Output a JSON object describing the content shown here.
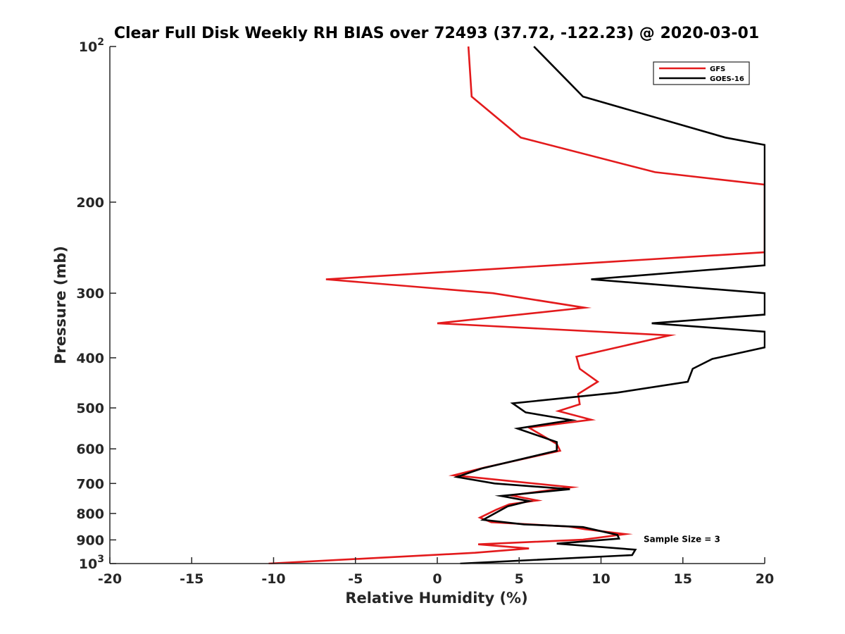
{
  "chart_data": {
    "type": "line",
    "title": "Clear Full Disk Weekly RH BIAS over 72493 (37.72, -122.23) @ 2020-03-01",
    "xlabel": "Relative Humidity (%)",
    "ylabel": "Pressure (mb)",
    "xlim": [
      -20,
      20
    ],
    "ylim": [
      100,
      1000
    ],
    "y_scale": "log",
    "y_reversed": true,
    "x_ticks": [
      -20,
      -15,
      -10,
      -5,
      0,
      5,
      10,
      15,
      20
    ],
    "y_ticks": [
      {
        "value": 100,
        "label": "10",
        "sup": "2"
      },
      {
        "value": 200,
        "label": "200"
      },
      {
        "value": 300,
        "label": "300"
      },
      {
        "value": 400,
        "label": "400"
      },
      {
        "value": 500,
        "label": "500"
      },
      {
        "value": 600,
        "label": "600"
      },
      {
        "value": 700,
        "label": "700"
      },
      {
        "value": 800,
        "label": "800"
      },
      {
        "value": 900,
        "label": "900"
      },
      {
        "value": 1000,
        "label": "10",
        "sup": "3"
      }
    ],
    "grid": false,
    "legend_position": "top-right",
    "series": [
      {
        "name": "GFS",
        "color": "#e31a1c",
        "points": [
          [
            1.9,
            100
          ],
          [
            2.1,
            125
          ],
          [
            5.1,
            150
          ],
          [
            13.3,
            175
          ],
          [
            20.0,
            185
          ],
          [
            20.0,
            250
          ],
          [
            -6.8,
            282
          ],
          [
            3.4,
            300
          ],
          [
            9.0,
            320
          ],
          [
            0.0,
            343
          ],
          [
            14.2,
            362
          ],
          [
            8.5,
            398
          ],
          [
            8.7,
            420
          ],
          [
            9.8,
            445
          ],
          [
            8.6,
            470
          ],
          [
            8.7,
            492
          ],
          [
            7.4,
            507
          ],
          [
            9.4,
            527
          ],
          [
            5.6,
            546
          ],
          [
            7.3,
            587
          ],
          [
            7.5,
            605
          ],
          [
            2.9,
            652
          ],
          [
            1.0,
            675
          ],
          [
            8.2,
            712
          ],
          [
            4.5,
            738
          ],
          [
            6.1,
            755
          ],
          [
            4.4,
            768
          ],
          [
            3.6,
            787
          ],
          [
            2.6,
            815
          ],
          [
            3.3,
            832
          ],
          [
            8.0,
            848
          ],
          [
            9.0,
            858
          ],
          [
            11.5,
            877
          ],
          [
            8.9,
            899
          ],
          [
            2.5,
            918
          ],
          [
            5.6,
            935
          ],
          [
            2.3,
            953
          ],
          [
            -10.3,
            1000
          ]
        ]
      },
      {
        "name": "GOES-16",
        "color": "#000000",
        "points": [
          [
            5.9,
            100
          ],
          [
            8.9,
            125
          ],
          [
            17.6,
            150
          ],
          [
            20.0,
            155
          ],
          [
            20.0,
            265
          ],
          [
            9.4,
            282
          ],
          [
            20.0,
            300
          ],
          [
            20.0,
            330
          ],
          [
            13.1,
            343
          ],
          [
            20.0,
            356
          ],
          [
            20.0,
            382
          ],
          [
            16.8,
            402
          ],
          [
            15.6,
            420
          ],
          [
            15.3,
            445
          ],
          [
            11.0,
            467
          ],
          [
            4.6,
            490
          ],
          [
            5.4,
            510
          ],
          [
            8.2,
            528
          ],
          [
            4.9,
            548
          ],
          [
            7.3,
            582
          ],
          [
            7.3,
            605
          ],
          [
            2.7,
            655
          ],
          [
            1.2,
            680
          ],
          [
            3.5,
            700
          ],
          [
            8.1,
            718
          ],
          [
            3.9,
            740
          ],
          [
            5.6,
            757
          ],
          [
            4.3,
            775
          ],
          [
            2.8,
            823
          ],
          [
            5.3,
            840
          ],
          [
            8.9,
            850
          ],
          [
            11.0,
            880
          ],
          [
            11.1,
            895
          ],
          [
            7.3,
            915
          ],
          [
            12.1,
            940
          ],
          [
            11.9,
            963
          ],
          [
            1.4,
            1000
          ]
        ]
      }
    ],
    "annotations": [
      {
        "text": "Sample Size = 3",
        "x": 12.6,
        "y": 898
      }
    ]
  }
}
